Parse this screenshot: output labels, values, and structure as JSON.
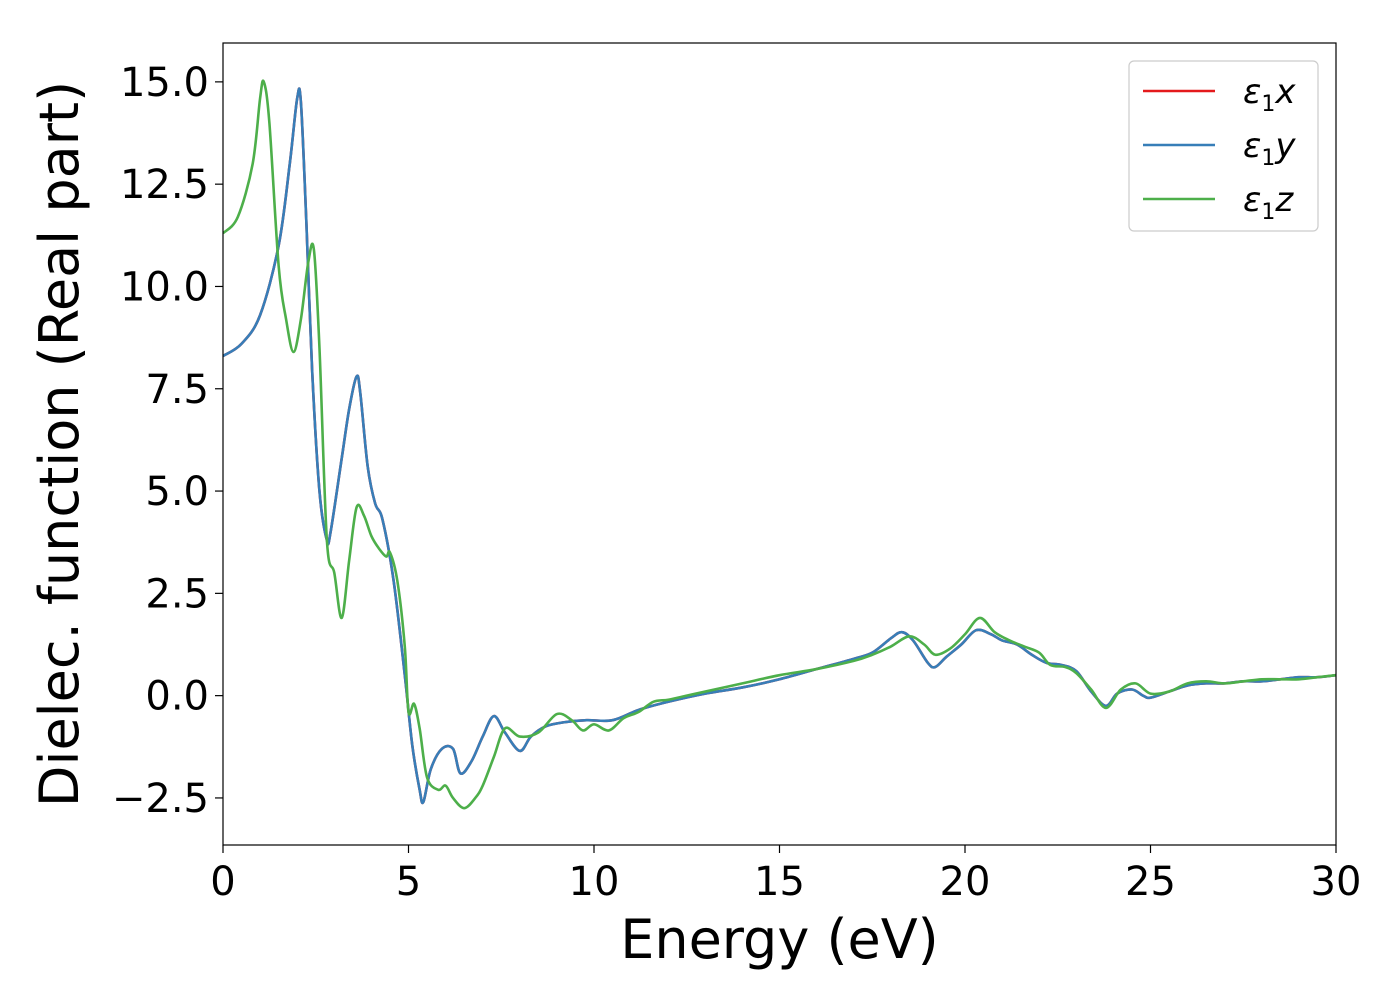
{
  "chart_data": {
    "type": "line",
    "xlabel": "Energy (eV)",
    "ylabel": "Dielec. function (Real part)",
    "xlim": [
      0,
      30
    ],
    "ylim": [
      -3.65,
      15.95
    ],
    "xticks": [
      0,
      5,
      10,
      15,
      20,
      25,
      30
    ],
    "xtick_labels": [
      "0",
      "5",
      "10",
      "15",
      "20",
      "25",
      "30"
    ],
    "yticks": [
      -2.5,
      0.0,
      2.5,
      5.0,
      7.5,
      10.0,
      12.5,
      15.0
    ],
    "ytick_labels": [
      "−2.5",
      "0.0",
      "2.5",
      "5.0",
      "7.5",
      "10.0",
      "12.5",
      "15.0"
    ],
    "grid": false,
    "legend_position": "top-right",
    "series": [
      {
        "name": "ε1x",
        "legend_base": "ε",
        "legend_sub": "1",
        "legend_tail": "x",
        "color": "#e41a1c",
        "x": [
          0,
          0.5,
          1.0,
          1.5,
          1.8,
          2.0,
          2.1,
          2.25,
          2.4,
          2.6,
          2.8,
          2.9,
          3.2,
          3.4,
          3.6,
          3.7,
          3.9,
          4.1,
          4.3,
          4.6,
          4.9,
          5.1,
          5.3,
          5.4,
          5.6,
          5.9,
          6.2,
          6.4,
          6.7,
          7.0,
          7.3,
          7.6,
          8.0,
          8.3,
          8.7,
          9.2,
          9.8,
          10.5,
          11.2,
          12.0,
          13.0,
          14.0,
          15.0,
          16.0,
          17.0,
          17.5,
          18.0,
          18.3,
          18.6,
          19.0,
          19.2,
          19.5,
          19.9,
          20.3,
          20.7,
          21.0,
          21.4,
          21.8,
          22.2,
          22.6,
          23.0,
          23.4,
          23.8,
          24.1,
          24.5,
          24.8,
          25.0,
          25.5,
          26.0,
          26.5,
          27.0,
          27.5,
          28.0,
          28.5,
          29.0,
          29.5,
          30.0
        ],
        "y": [
          8.3,
          8.6,
          9.3,
          11.0,
          13.0,
          14.6,
          14.5,
          11.5,
          8.0,
          5.0,
          3.8,
          4.0,
          5.8,
          7.0,
          7.8,
          7.4,
          5.6,
          4.7,
          4.3,
          2.8,
          0.5,
          -1.2,
          -2.3,
          -2.6,
          -1.8,
          -1.3,
          -1.3,
          -1.9,
          -1.6,
          -1.0,
          -0.5,
          -0.9,
          -1.35,
          -1.0,
          -0.75,
          -0.65,
          -0.6,
          -0.6,
          -0.35,
          -0.15,
          0.05,
          0.2,
          0.4,
          0.65,
          0.9,
          1.05,
          1.4,
          1.55,
          1.35,
          0.8,
          0.7,
          0.95,
          1.25,
          1.6,
          1.5,
          1.35,
          1.25,
          1.0,
          0.8,
          0.75,
          0.6,
          0.1,
          -0.25,
          0.05,
          0.15,
          0.0,
          -0.05,
          0.1,
          0.25,
          0.3,
          0.3,
          0.35,
          0.35,
          0.4,
          0.45,
          0.45,
          0.5
        ]
      },
      {
        "name": "ε1y",
        "legend_base": "ε",
        "legend_sub": "1",
        "legend_tail": "y",
        "color": "#377eb8",
        "x": [
          0,
          0.5,
          1.0,
          1.5,
          1.8,
          2.0,
          2.1,
          2.25,
          2.4,
          2.6,
          2.8,
          2.9,
          3.2,
          3.4,
          3.6,
          3.7,
          3.9,
          4.1,
          4.3,
          4.6,
          4.9,
          5.1,
          5.3,
          5.4,
          5.6,
          5.9,
          6.2,
          6.4,
          6.7,
          7.0,
          7.3,
          7.6,
          8.0,
          8.3,
          8.7,
          9.2,
          9.8,
          10.5,
          11.2,
          12.0,
          13.0,
          14.0,
          15.0,
          16.0,
          17.0,
          17.5,
          18.0,
          18.3,
          18.6,
          19.0,
          19.2,
          19.5,
          19.9,
          20.3,
          20.7,
          21.0,
          21.4,
          21.8,
          22.2,
          22.6,
          23.0,
          23.4,
          23.8,
          24.1,
          24.5,
          24.8,
          25.0,
          25.5,
          26.0,
          26.5,
          27.0,
          27.5,
          28.0,
          28.5,
          29.0,
          29.5,
          30.0
        ],
        "y": [
          8.3,
          8.6,
          9.3,
          11.0,
          13.0,
          14.6,
          14.5,
          11.5,
          8.0,
          5.0,
          3.8,
          4.0,
          5.8,
          7.0,
          7.8,
          7.4,
          5.6,
          4.7,
          4.3,
          2.8,
          0.5,
          -1.2,
          -2.3,
          -2.6,
          -1.8,
          -1.3,
          -1.3,
          -1.9,
          -1.6,
          -1.0,
          -0.5,
          -0.9,
          -1.35,
          -1.0,
          -0.75,
          -0.65,
          -0.6,
          -0.6,
          -0.35,
          -0.15,
          0.05,
          0.2,
          0.4,
          0.65,
          0.9,
          1.05,
          1.4,
          1.55,
          1.35,
          0.8,
          0.7,
          0.95,
          1.25,
          1.6,
          1.5,
          1.35,
          1.25,
          1.0,
          0.8,
          0.75,
          0.6,
          0.1,
          -0.25,
          0.05,
          0.15,
          0.0,
          -0.05,
          0.1,
          0.25,
          0.3,
          0.3,
          0.35,
          0.35,
          0.4,
          0.45,
          0.45,
          0.5
        ]
      },
      {
        "name": "ε1z",
        "legend_base": "ε",
        "legend_sub": "1",
        "legend_tail": "z",
        "color": "#4daf4a",
        "x": [
          0,
          0.4,
          0.8,
          1.0,
          1.1,
          1.25,
          1.5,
          1.7,
          1.9,
          2.1,
          2.3,
          2.45,
          2.6,
          2.8,
          3.0,
          3.2,
          3.4,
          3.6,
          3.8,
          4.0,
          4.2,
          4.4,
          4.5,
          4.7,
          4.9,
          5.0,
          5.15,
          5.3,
          5.5,
          5.8,
          6.0,
          6.2,
          6.5,
          6.8,
          7.0,
          7.3,
          7.6,
          8.0,
          8.5,
          9.0,
          9.4,
          9.7,
          10.0,
          10.4,
          10.8,
          11.2,
          11.6,
          12.0,
          12.5,
          13.0,
          14.0,
          15.0,
          16.0,
          17.0,
          17.5,
          18.0,
          18.5,
          18.9,
          19.2,
          19.6,
          20.0,
          20.4,
          20.8,
          21.2,
          21.6,
          22.0,
          22.3,
          22.7,
          23.0,
          23.4,
          23.8,
          24.2,
          24.6,
          25.0,
          25.5,
          26.0,
          26.5,
          27.0,
          27.5,
          28.0,
          28.5,
          29.0,
          29.5,
          30.0
        ],
        "y": [
          11.3,
          11.7,
          13.0,
          14.6,
          15.0,
          14.0,
          10.5,
          9.2,
          8.4,
          9.2,
          10.6,
          10.9,
          8.5,
          3.8,
          3.0,
          1.9,
          3.3,
          4.6,
          4.4,
          3.9,
          3.6,
          3.4,
          3.5,
          2.8,
          1.2,
          -0.4,
          -0.2,
          -0.8,
          -2.0,
          -2.3,
          -2.2,
          -2.5,
          -2.75,
          -2.5,
          -2.2,
          -1.5,
          -0.8,
          -1.0,
          -0.9,
          -0.45,
          -0.6,
          -0.85,
          -0.7,
          -0.85,
          -0.55,
          -0.4,
          -0.15,
          -0.1,
          0.0,
          0.1,
          0.3,
          0.5,
          0.65,
          0.85,
          1.0,
          1.2,
          1.45,
          1.25,
          1.0,
          1.15,
          1.5,
          1.9,
          1.55,
          1.35,
          1.2,
          1.05,
          0.75,
          0.7,
          0.55,
          0.15,
          -0.3,
          0.15,
          0.3,
          0.05,
          0.1,
          0.3,
          0.35,
          0.3,
          0.35,
          0.4,
          0.4,
          0.4,
          0.45,
          0.5
        ]
      }
    ]
  }
}
